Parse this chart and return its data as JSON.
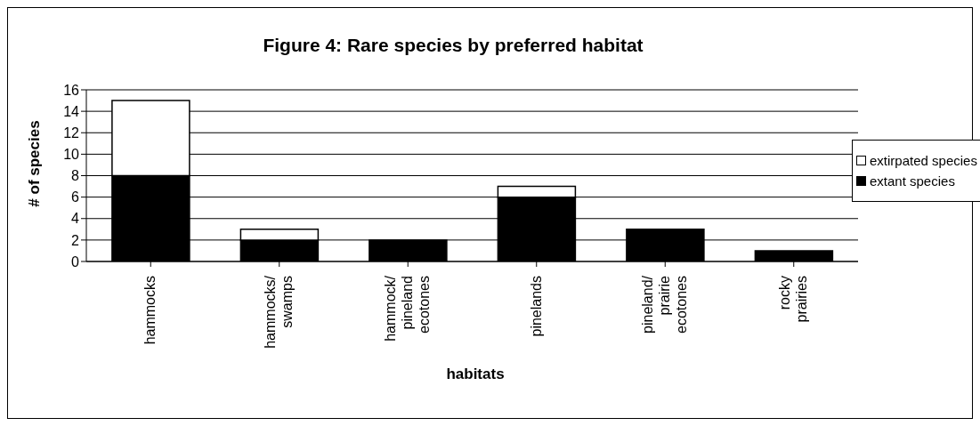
{
  "chart_data": {
    "type": "bar",
    "title": "Figure 4: Rare species by preferred habitat",
    "xlabel": "habitats",
    "ylabel": "# of species",
    "categories": [
      "hammocks",
      "hammocks/ swamps",
      "hammock/ pineland ecotones",
      "pinelands",
      "pineland/ prairie ecotones",
      "rocky prairies"
    ],
    "series": [
      {
        "name": "extant species",
        "color": "#000000",
        "values": [
          8,
          2,
          2,
          6,
          3,
          1
        ]
      },
      {
        "name": "extirpated species",
        "color": "#ffffff",
        "values": [
          7,
          1,
          0,
          1,
          0,
          0
        ]
      }
    ],
    "stacked": true,
    "ylim": [
      0,
      16
    ],
    "yticks": [
      0,
      2,
      4,
      6,
      8,
      10,
      12,
      14,
      16
    ],
    "grid": "y",
    "legend": "right"
  }
}
